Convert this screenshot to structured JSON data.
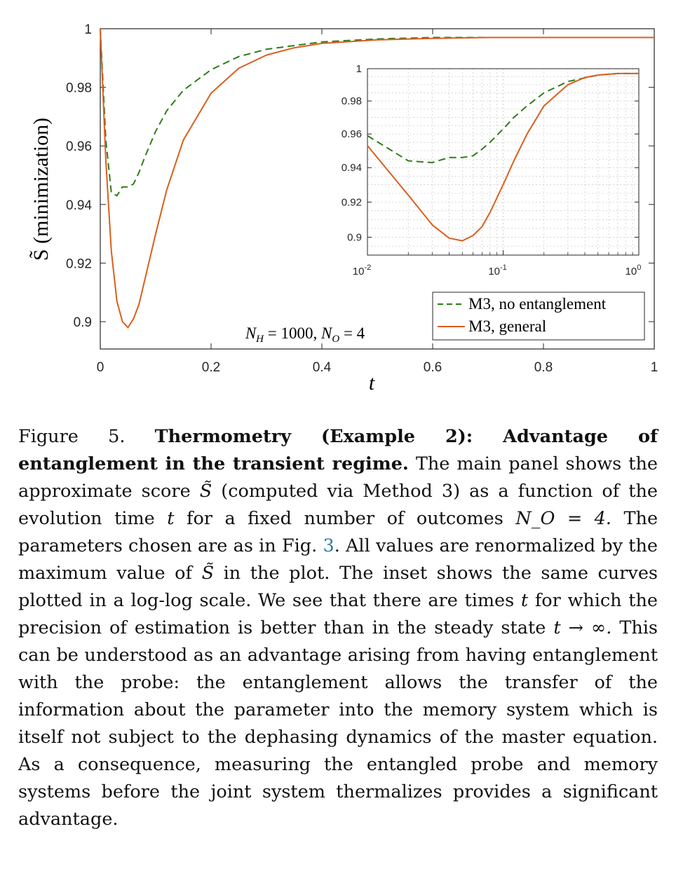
{
  "chart_data": [
    {
      "type": "line",
      "xlabel": "t",
      "ylabel": "S̃ (minimization)",
      "xlim": [
        0,
        1
      ],
      "ylim": [
        0.89,
        1
      ],
      "xticks": [
        "0",
        "0.2",
        "0.4",
        "0.6",
        "0.8",
        "1"
      ],
      "yticks": [
        "0.9",
        "0.92",
        "0.94",
        "0.96",
        "0.98",
        "1"
      ],
      "annotation": "N_H = 1000, N_O = 4",
      "legend_position": "bottom-right",
      "grid": false,
      "series": [
        {
          "name": "M3, no entanglement",
          "color": "#2e7d1a",
          "style": "dashed",
          "points": [
            [
              0.0,
              1.0
            ],
            [
              0.01,
              0.962
            ],
            [
              0.02,
              0.944
            ],
            [
              0.03,
              0.943
            ],
            [
              0.04,
              0.946
            ],
            [
              0.05,
              0.946
            ],
            [
              0.06,
              0.947
            ],
            [
              0.07,
              0.951
            ],
            [
              0.08,
              0.956
            ],
            [
              0.1,
              0.965
            ],
            [
              0.12,
              0.972
            ],
            [
              0.15,
              0.979
            ],
            [
              0.2,
              0.986
            ],
            [
              0.25,
              0.9905
            ],
            [
              0.3,
              0.993
            ],
            [
              0.4,
              0.9955
            ],
            [
              0.5,
              0.9965
            ],
            [
              0.6,
              0.997
            ],
            [
              0.8,
              0.997
            ],
            [
              1.0,
              0.997
            ]
          ]
        },
        {
          "name": "M3, general",
          "color": "#d95f1e",
          "style": "solid",
          "points": [
            [
              0.0,
              1.0
            ],
            [
              0.01,
              0.955
            ],
            [
              0.02,
              0.924
            ],
            [
              0.03,
              0.907
            ],
            [
              0.04,
              0.9
            ],
            [
              0.05,
              0.898
            ],
            [
              0.06,
              0.901
            ],
            [
              0.07,
              0.906
            ],
            [
              0.08,
              0.914
            ],
            [
              0.1,
              0.93
            ],
            [
              0.12,
              0.945
            ],
            [
              0.15,
              0.962
            ],
            [
              0.2,
              0.978
            ],
            [
              0.25,
              0.9865
            ],
            [
              0.3,
              0.991
            ],
            [
              0.35,
              0.9935
            ],
            [
              0.4,
              0.995
            ],
            [
              0.5,
              0.9962
            ],
            [
              0.6,
              0.9967
            ],
            [
              0.7,
              0.997
            ],
            [
              0.8,
              0.997
            ],
            [
              1.0,
              0.997
            ]
          ]
        }
      ]
    },
    {
      "type": "line",
      "scale": "log-log",
      "xlim": [
        0.01,
        1
      ],
      "ylim": [
        0.89,
        1
      ],
      "xticks": [
        "10^-2",
        "10^-1",
        "10^0"
      ],
      "yticks": [
        "0.9",
        "0.92",
        "0.94",
        "0.96",
        "0.98",
        "1"
      ],
      "grid": true,
      "series": [
        {
          "name": "M3, no entanglement",
          "color": "#2e7d1a",
          "style": "dashed",
          "points": [
            [
              0.01,
              0.959
            ],
            [
              0.02,
              0.944
            ],
            [
              0.03,
              0.943
            ],
            [
              0.04,
              0.946
            ],
            [
              0.05,
              0.946
            ],
            [
              0.06,
              0.947
            ],
            [
              0.07,
              0.951
            ],
            [
              0.08,
              0.955
            ],
            [
              0.1,
              0.963
            ],
            [
              0.12,
              0.97
            ],
            [
              0.15,
              0.977
            ],
            [
              0.2,
              0.985
            ],
            [
              0.3,
              0.992
            ],
            [
              0.5,
              0.996
            ],
            [
              0.7,
              0.997
            ],
            [
              1.0,
              0.997
            ]
          ]
        },
        {
          "name": "M3, general",
          "color": "#d95f1e",
          "style": "solid",
          "points": [
            [
              0.01,
              0.953
            ],
            [
              0.02,
              0.924
            ],
            [
              0.03,
              0.907
            ],
            [
              0.04,
              0.8995
            ],
            [
              0.05,
              0.898
            ],
            [
              0.06,
              0.901
            ],
            [
              0.07,
              0.906
            ],
            [
              0.08,
              0.914
            ],
            [
              0.1,
              0.93
            ],
            [
              0.12,
              0.944
            ],
            [
              0.15,
              0.96
            ],
            [
              0.2,
              0.977
            ],
            [
              0.3,
              0.99
            ],
            [
              0.4,
              0.9945
            ],
            [
              0.5,
              0.996
            ],
            [
              0.7,
              0.997
            ],
            [
              1.0,
              0.997
            ]
          ]
        }
      ]
    }
  ],
  "caption": {
    "label": "Figure 5.",
    "title": "Thermometry (Example 2): Advantage of entanglement in the transient regime.",
    "part1": "The main panel shows the approximate score",
    "score_symbol": "S̃",
    "part2": "(computed via Method 3) as a function of the evolution time",
    "t_symbol": "t",
    "part3": "for a fixed number of outcomes",
    "no_expr": "N_O = 4.",
    "part4": "The parameters chosen are as in Fig.",
    "fig_ref": "3",
    "part5": ". All values are renormalized by the maximum value of",
    "part6": "in the plot. The inset shows the same curves plotted in a log-log scale. We see that there are times",
    "part7": "for which the precision of estimation is better than in the steady state",
    "limit_expr": "t → ∞.",
    "part8": "This can be understood as an advantage arising from having entanglement with the probe: the entanglement allows the transfer of the information about the parameter into the memory system which is itself not subject to the dephasing dynamics of the master equation. As a consequence, measuring the entangled probe and memory systems before the joint system thermalizes provides a significant advantage."
  }
}
